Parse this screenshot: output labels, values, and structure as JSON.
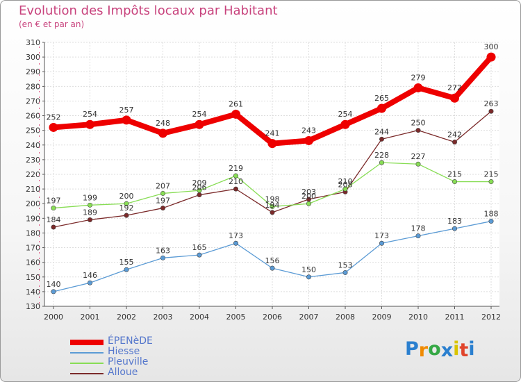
{
  "title": "Evolution des Impôts locaux par Habitant",
  "subtitle": "(en € et par an)",
  "brand": {
    "letters": [
      "P",
      "r",
      "o",
      "x",
      "i",
      "t",
      "i"
    ],
    "colors": [
      "#2a7fcf",
      "#f08a00",
      "#35a845",
      "#2a7fcf",
      "#d9c400",
      "#e0442b",
      "#2a7fcf"
    ]
  },
  "chart_data": {
    "type": "line",
    "title": "Evolution des Impôts locaux par Habitant",
    "subtitle": "(en € et par an)",
    "xlabel": "",
    "ylabel": "",
    "x": [
      "2000",
      "2001",
      "2002",
      "2003",
      "2004",
      "2005",
      "2006",
      "2007",
      "2008",
      "2009",
      "2010",
      "2011",
      "2012"
    ],
    "ylim": [
      130,
      310
    ],
    "yticks": [
      "130",
      "140",
      "150",
      "160",
      "170",
      "180",
      "190",
      "200",
      "210",
      "220",
      "230",
      "240",
      "250",
      "260",
      "270",
      "280",
      "290",
      "300",
      "310"
    ],
    "grid": true,
    "legend_position": "bottom-left",
    "series": [
      {
        "name": "ÉPENèDE",
        "color": "#ee0000",
        "values": [
          252,
          254,
          257,
          248,
          254,
          261,
          241,
          243,
          254,
          265,
          279,
          272,
          300
        ],
        "labels": [
          "252",
          "254",
          "257",
          "248",
          "254",
          "261",
          "241",
          "243",
          "254",
          "265",
          "279",
          "272",
          "300"
        ]
      },
      {
        "name": "Hiesse",
        "color": "#5b9bd5",
        "values": [
          140,
          146,
          155,
          163,
          165,
          173,
          156,
          150,
          153,
          173,
          178,
          183,
          188
        ],
        "labels": [
          "140",
          "146",
          "155",
          "163",
          "165",
          "173",
          "156",
          "150",
          "153",
          "173",
          "178",
          "183",
          "188"
        ]
      },
      {
        "name": "Pleuville",
        "color": "#88dd55",
        "values": [
          197,
          199,
          200,
          207,
          209,
          219,
          198,
          200,
          210,
          228,
          227,
          215,
          215
        ],
        "labels": [
          "197",
          "199",
          "200",
          "207",
          "209",
          "219",
          "198",
          "200",
          "210",
          "228",
          "227",
          "215",
          "215"
        ]
      },
      {
        "name": "Alloue",
        "color": "#7b2a2a",
        "values": [
          184,
          189,
          192,
          197,
          206,
          210,
          194,
          203,
          208,
          244,
          250,
          242,
          263
        ],
        "labels": [
          "184",
          "189",
          "192",
          "197",
          "206",
          "210",
          "194",
          "203",
          "208",
          "244",
          "250",
          "242",
          "263"
        ]
      }
    ]
  }
}
